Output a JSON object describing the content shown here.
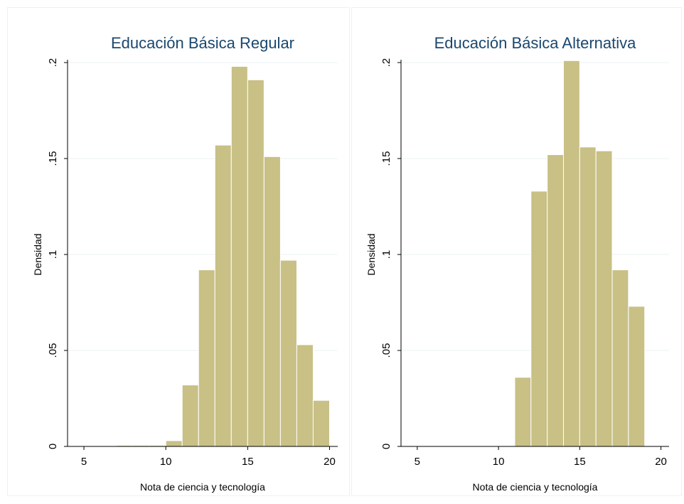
{
  "style": {
    "bar_fill": "#c8c085",
    "bar_stroke": "#ffffff",
    "panel_border": "#eef0f3",
    "grid_color": "#eef0f3",
    "axis_color": "#000000",
    "title_color": "#1a476f",
    "text_color": "#000000"
  },
  "chart_data": [
    {
      "type": "bar",
      "title": "Educación Básica Regular",
      "xlabel": "Nota de ciencia y tecnología",
      "ylabel": "Densidad",
      "xlim": [
        4,
        20.5
      ],
      "ylim": [
        0,
        0.2
      ],
      "xticks": [
        5,
        10,
        15,
        20
      ],
      "xtick_labels": [
        "5",
        "10",
        "15",
        "20"
      ],
      "yticks": [
        0,
        0.05,
        0.1,
        0.15,
        0.2
      ],
      "ytick_labels": [
        "0",
        ".05",
        ".1",
        ".15",
        ".2"
      ],
      "grid": true,
      "bin_width": 1,
      "bins": [
        {
          "x0": 7,
          "x1": 8,
          "y": 0.0005
        },
        {
          "x0": 8,
          "x1": 9,
          "y": 0.0005
        },
        {
          "x0": 9,
          "x1": 10,
          "y": 0.0005
        },
        {
          "x0": 10,
          "x1": 11,
          "y": 0.003
        },
        {
          "x0": 11,
          "x1": 12,
          "y": 0.032
        },
        {
          "x0": 12,
          "x1": 13,
          "y": 0.092
        },
        {
          "x0": 13,
          "x1": 14,
          "y": 0.157
        },
        {
          "x0": 14,
          "x1": 15,
          "y": 0.198
        },
        {
          "x0": 15,
          "x1": 16,
          "y": 0.191
        },
        {
          "x0": 16,
          "x1": 17,
          "y": 0.151
        },
        {
          "x0": 17,
          "x1": 18,
          "y": 0.097
        },
        {
          "x0": 18,
          "x1": 19,
          "y": 0.053
        },
        {
          "x0": 19,
          "x1": 20,
          "y": 0.024
        }
      ]
    },
    {
      "type": "bar",
      "title": "Educación Básica Alternativa",
      "xlabel": "Nota de ciencia y tecnología",
      "ylabel": "Densidad",
      "xlim": [
        4,
        20.5
      ],
      "ylim": [
        0,
        0.2
      ],
      "xticks": [
        5,
        10,
        15,
        20
      ],
      "xtick_labels": [
        "5",
        "10",
        "15",
        "20"
      ],
      "yticks": [
        0,
        0.05,
        0.1,
        0.15,
        0.2
      ],
      "ytick_labels": [
        "0",
        ".05",
        ".1",
        ".15",
        ".2"
      ],
      "grid": true,
      "bin_width": 1,
      "bins": [
        {
          "x0": 11,
          "x1": 12,
          "y": 0.036
        },
        {
          "x0": 12,
          "x1": 13,
          "y": 0.133
        },
        {
          "x0": 13,
          "x1": 14,
          "y": 0.152
        },
        {
          "x0": 14,
          "x1": 15,
          "y": 0.201
        },
        {
          "x0": 15,
          "x1": 16,
          "y": 0.156
        },
        {
          "x0": 16,
          "x1": 17,
          "y": 0.154
        },
        {
          "x0": 17,
          "x1": 18,
          "y": 0.092
        },
        {
          "x0": 18,
          "x1": 19,
          "y": 0.073
        }
      ]
    }
  ]
}
